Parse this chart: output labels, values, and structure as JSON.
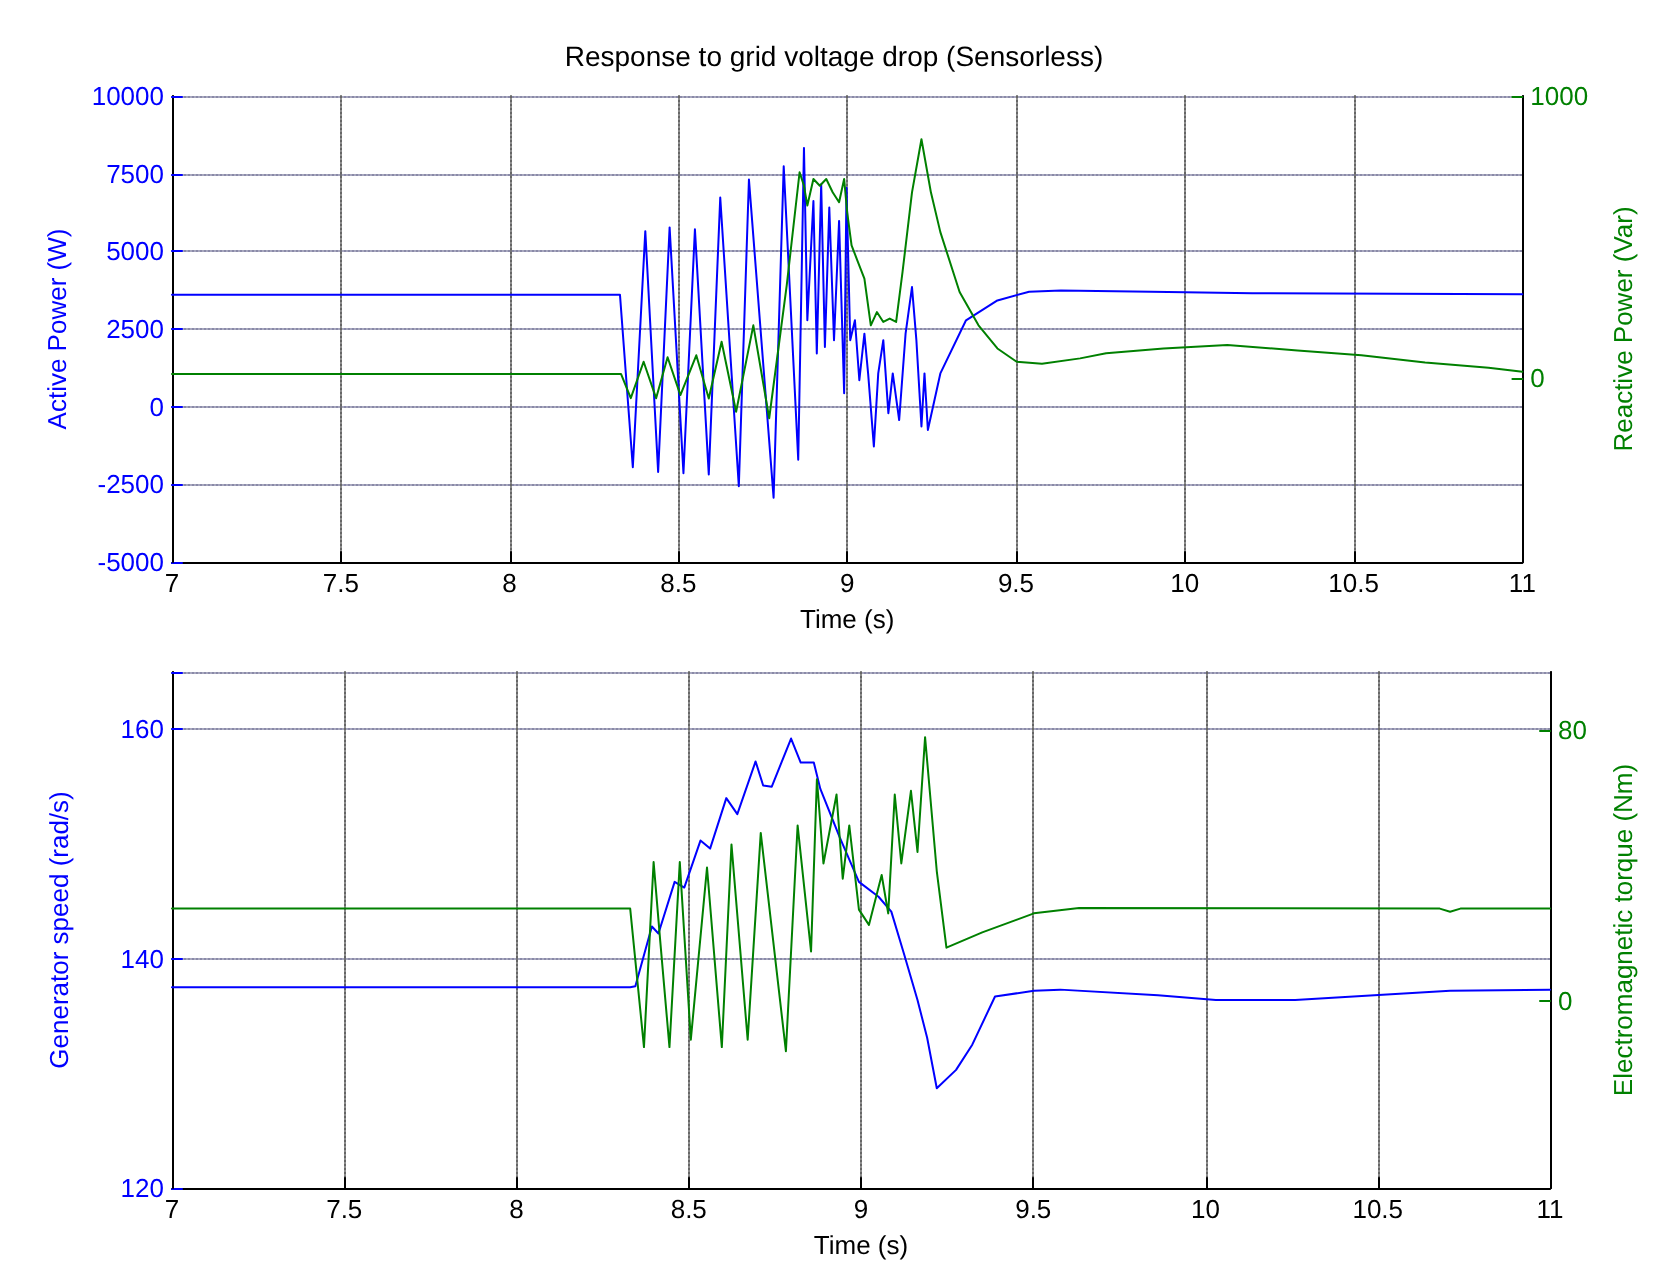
{
  "chart_data": [
    {
      "type": "line",
      "title": "Response to grid voltage drop (Sensorless)",
      "xlabel": "Time (s)",
      "ylabel": "Active Power (W)",
      "y2label": "Reactive Power (Var)",
      "xlim": [
        7,
        11
      ],
      "xticks": [
        7,
        7.5,
        8,
        8.5,
        9,
        9.5,
        10,
        10.5,
        11
      ],
      "ylim": [
        -5000,
        10000
      ],
      "yticks": [
        -5000,
        -2500,
        0,
        2500,
        5000,
        7500,
        10000
      ],
      "y2lim": [
        -650,
        1000
      ],
      "y2ticks": [
        0,
        1000
      ],
      "grid": true,
      "marker": "none",
      "line_style": "solid",
      "series": [
        {
          "color": "#0000ff",
          "x": [
            7,
            8.327,
            8.365,
            8.402,
            8.44,
            8.474,
            8.515,
            8.549,
            8.59,
            8.624,
            8.679,
            8.709,
            8.782,
            8.812,
            8.855,
            8.872,
            8.882,
            8.9,
            8.91,
            8.923,
            8.934,
            8.947,
            8.961,
            8.976,
            8.991,
            8.998,
            9.009,
            9.023,
            9.036,
            9.051,
            9.062,
            9.079,
            9.092,
            9.107,
            9.122,
            9.135,
            9.154,
            9.173,
            9.192,
            9.205,
            9.22,
            9.229,
            9.239,
            9.276,
            9.352,
            9.445,
            9.539,
            9.633,
            9.9,
            10.2,
            11
          ],
          "values": [
            3600,
            3600,
            -1950,
            5650,
            -2100,
            5770,
            -2140,
            5710,
            -2180,
            6730,
            -2560,
            7310,
            -2930,
            7740,
            -1710,
            8330,
            2780,
            6620,
            1710,
            7160,
            1920,
            6410,
            2140,
            5980,
            430,
            7050,
            2140,
            2780,
            850,
            2350,
            1070,
            -1280,
            1070,
            2140,
            -210,
            1070,
            -430,
            2350,
            3850,
            2140,
            -640,
            1070,
            -750,
            1070,
            2780,
            3420,
            3700,
            3740,
            3700,
            3650,
            3620
          ]
        },
        {
          "color": "#008000",
          "axis": "y2",
          "x": [
            7,
            8.33,
            8.359,
            8.397,
            8.434,
            8.468,
            8.506,
            8.553,
            8.59,
            8.628,
            8.671,
            8.722,
            8.769,
            8.821,
            8.859,
            8.872,
            8.882,
            8.9,
            8.919,
            8.938,
            8.957,
            8.976,
            8.991,
            9.0,
            9.013,
            9.032,
            9.051,
            9.07,
            9.088,
            9.107,
            9.126,
            9.145,
            9.164,
            9.192,
            9.22,
            9.248,
            9.276,
            9.333,
            9.389,
            9.445,
            9.502,
            9.577,
            9.69,
            9.767,
            9.937,
            10.126,
            10.334,
            10.523,
            10.712,
            10.9,
            11
          ],
          "values": [
            16,
            16,
            -70,
            59,
            -70,
            75,
            -59,
            82,
            -71,
            130,
            -118,
            188,
            -141,
            330,
            730,
            682,
            612,
            706,
            682,
            706,
            659,
            624,
            706,
            588,
            471,
            412,
            353,
            188,
            235,
            200,
            212,
            200,
            377,
            659,
            847,
            659,
            518,
            306,
            188,
            106,
            59,
            52,
            71,
            89,
            106,
            118,
            99,
            82,
            56,
            38,
            24
          ]
        }
      ]
    },
    {
      "type": "line",
      "xlabel": "Time (s)",
      "ylabel": "Generator speed (rad/s)",
      "y2label": "Electromagnetic torque (Nm)",
      "xlim": [
        7,
        11
      ],
      "xticks": [
        7,
        7.5,
        8,
        8.5,
        9,
        9.5,
        10,
        10.5,
        11
      ],
      "ylim": [
        120,
        165
      ],
      "yticks": [
        120,
        140,
        160
      ],
      "y2lim": [
        -55,
        97
      ],
      "y2ticks": [
        0,
        80
      ],
      "grid": true,
      "marker": "none",
      "line_style": "solid",
      "series": [
        {
          "color": "#0000ff",
          "x": [
            7,
            8.33,
            8.345,
            8.393,
            8.412,
            8.459,
            8.487,
            8.534,
            8.562,
            8.609,
            8.641,
            8.694,
            8.716,
            8.741,
            8.797,
            8.825,
            8.863,
            8.882,
            8.938,
            8.994,
            9.051,
            9.088,
            9.126,
            9.164,
            9.192,
            9.22,
            9.276,
            9.323,
            9.389,
            9.502,
            9.578,
            9.862,
            10.03,
            10.26,
            10.49,
            10.71,
            11
          ],
          "values": [
            137.5,
            137.5,
            137.6,
            142.8,
            142.2,
            146.7,
            146.2,
            150.3,
            149.6,
            154,
            152.6,
            157.2,
            155.1,
            155,
            159.2,
            157.1,
            157.1,
            154.8,
            150.6,
            146.7,
            145.4,
            144.1,
            140.3,
            136.4,
            133.1,
            128.7,
            130.3,
            132.5,
            136.7,
            137.2,
            137.3,
            136.8,
            136.4,
            136.4,
            136.8,
            137.2,
            137.3
          ]
        },
        {
          "color": "#008000",
          "axis": "y2",
          "x": [
            7,
            8.33,
            8.37,
            8.398,
            8.417,
            8.444,
            8.474,
            8.506,
            8.553,
            8.596,
            8.624,
            8.671,
            8.709,
            8.782,
            8.816,
            8.855,
            8.872,
            8.891,
            8.929,
            8.947,
            8.966,
            8.994,
            9.023,
            9.06,
            9.079,
            9.098,
            9.117,
            9.145,
            9.164,
            9.186,
            9.22,
            9.248,
            9.352,
            9.502,
            9.633,
            10.68,
            10.71,
            10.74,
            11
          ],
          "values": [
            27.3,
            27.3,
            -13.5,
            41,
            18,
            -13.5,
            41,
            -11.3,
            39.4,
            -13.5,
            46.2,
            -11.3,
            49.6,
            -14.7,
            51.8,
            14.7,
            65.4,
            40.6,
            60.9,
            36.1,
            51.8,
            27,
            22.5,
            37.2,
            25.9,
            60.9,
            40.6,
            62,
            44,
            77.8,
            38.3,
            15.8,
            20.3,
            25.9,
            27.5,
            27.3,
            26.4,
            27.3,
            27.3
          ]
        }
      ]
    }
  ]
}
